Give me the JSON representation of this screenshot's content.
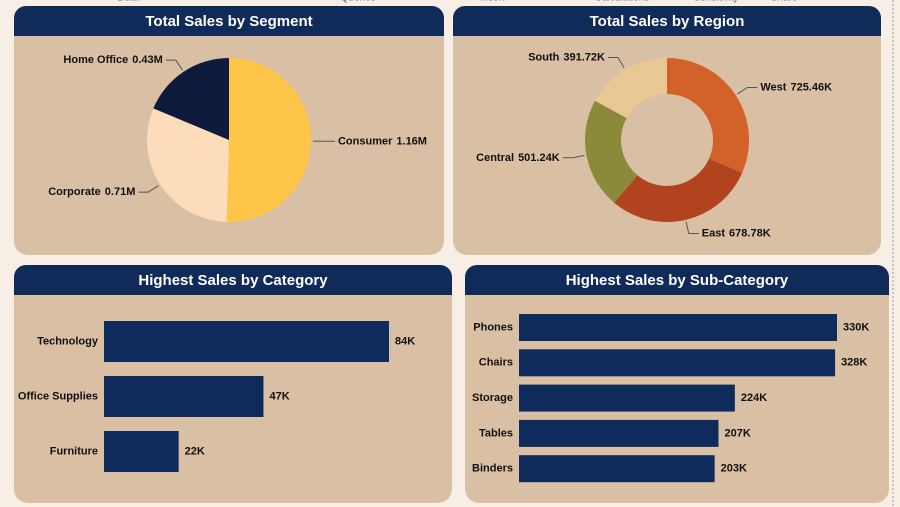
{
  "ribbon": [
    "Data",
    "Queries",
    "Insert",
    "Calculations",
    "Sensitivity",
    "Share"
  ],
  "chart_data": [
    {
      "type": "pie",
      "title": "Total Sales by Segment",
      "categories": [
        "Consumer",
        "Corporate",
        "Home Office"
      ],
      "values": [
        1.16,
        0.71,
        0.43
      ],
      "value_labels": [
        "1.16M",
        "0.71M",
        "0.43M"
      ],
      "colors": [
        "#ffc548",
        "#fddcbc",
        "#0e1b3d"
      ]
    },
    {
      "type": "donut",
      "title": "Total Sales by Region",
      "categories": [
        "West",
        "East",
        "Central",
        "South"
      ],
      "values": [
        725.46,
        678.78,
        501.24,
        391.72
      ],
      "value_labels": [
        "725.46K",
        "678.78K",
        "501.24K",
        "391.72K"
      ],
      "colors": [
        "#d2622a",
        "#b1431f",
        "#8a8a3a",
        "#e9c893"
      ]
    },
    {
      "type": "bar",
      "orientation": "horizontal",
      "title": "Highest Sales by Category",
      "categories": [
        "Technology",
        "Office Supplies",
        "Furniture"
      ],
      "values": [
        84,
        47,
        22
      ],
      "value_labels": [
        "84K",
        "47K",
        "22K"
      ],
      "color": "#0f2b5b"
    },
    {
      "type": "bar",
      "orientation": "horizontal",
      "title": "Highest Sales by Sub-Category",
      "categories": [
        "Phones",
        "Chairs",
        "Storage",
        "Tables",
        "Binders"
      ],
      "values": [
        330,
        328,
        224,
        207,
        203
      ],
      "value_labels": [
        "330K",
        "328K",
        "224K",
        "207K",
        "203K"
      ],
      "color": "#0f2b5b"
    }
  ]
}
